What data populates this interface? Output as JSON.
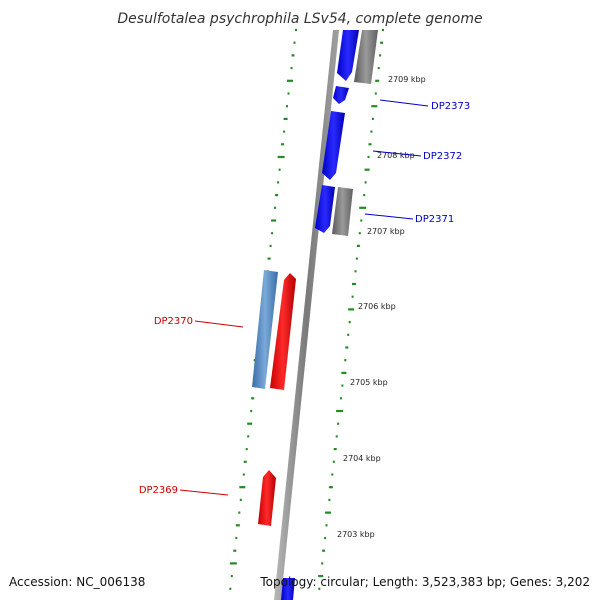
{
  "title": "Desulfotalea psychrophila LSv54, complete genome",
  "footer": {
    "accession": "Accession: NC_006138",
    "topology": "Topology: circular; Length: 3,523,383 bp; Genes: 3,202"
  },
  "colors": {
    "forward_gene": "#1010ee",
    "reverse_gene": "#ee1010",
    "steelblue_feature": "#4a7fb5",
    "gray_feature": "#777777",
    "backbone": "#8c8c8c",
    "gc_ticks": "#238b23",
    "label_blue": "#0000cc",
    "label_red": "#cc0000"
  },
  "kbp_ticks": [
    {
      "kbp": 2709,
      "label": "2709 kbp"
    },
    {
      "kbp": 2708,
      "label": "2708 kbp"
    },
    {
      "kbp": 2707,
      "label": "2707 kbp"
    },
    {
      "kbp": 2706,
      "label": "2706 kbp"
    },
    {
      "kbp": 2705,
      "label": "2705 kbp"
    },
    {
      "kbp": 2704,
      "label": "2704 kbp"
    },
    {
      "kbp": 2703,
      "label": "2703 kbp"
    }
  ],
  "genes": [
    {
      "name": "DP2373",
      "color": "#0000cc"
    },
    {
      "name": "DP2372",
      "color": "#0000cc"
    },
    {
      "name": "DP2371",
      "color": "#0000cc"
    },
    {
      "name": "DP2370",
      "color": "#cc0000"
    },
    {
      "name": "DP2369",
      "color": "#cc0000"
    }
  ]
}
